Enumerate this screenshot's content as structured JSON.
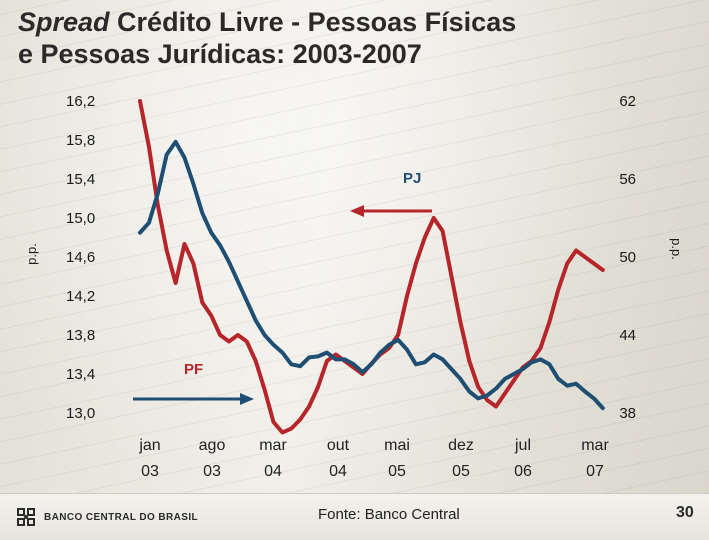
{
  "header": {
    "title_italic": "Spread",
    "title_rest": " Crédito Livre - Pessoas Físicas",
    "title_line2": "e Pessoas Jurídicas: 2003-2007"
  },
  "footer": {
    "logo_text": "BANCO CENTRAL DO BRASIL",
    "source": "Fonte: Banco Central",
    "page_number": "30"
  },
  "colors": {
    "pf": "#b5252a",
    "pj": "#1f4e73",
    "arrow_pf": "#1f4e73",
    "arrow_pj": "#b5252a"
  },
  "chart_data": {
    "type": "line",
    "left_axis": {
      "label": "p.p.",
      "ticks": [
        "16,2",
        "15,8",
        "15,4",
        "15,0",
        "14,6",
        "14,2",
        "13,8",
        "13,4",
        "13,0"
      ],
      "range": [
        13.0,
        16.2
      ]
    },
    "right_axis": {
      "label": "p.p.",
      "ticks": [
        "62",
        "56",
        "50",
        "44",
        "38"
      ],
      "range": [
        38,
        62
      ]
    },
    "x_labels": [
      {
        "line1": "jan",
        "line2": "03"
      },
      {
        "line1": "ago",
        "line2": "03"
      },
      {
        "line1": "mar",
        "line2": "04"
      },
      {
        "line1": "out",
        "line2": "04"
      },
      {
        "line1": "mai",
        "line2": "05"
      },
      {
        "line1": "dez",
        "line2": "05"
      },
      {
        "line1": "jul",
        "line2": "06"
      },
      {
        "line1": "mar",
        "line2": "07"
      }
    ],
    "annotations": {
      "pj_label": "PJ",
      "pf_label": "PF"
    },
    "series": [
      {
        "name": "PF",
        "axis": "right",
        "months": [
          0,
          1,
          2,
          3,
          4,
          5,
          6,
          7,
          8,
          9,
          10,
          11,
          12,
          13,
          14,
          15,
          16,
          17,
          18,
          19,
          20,
          21,
          22,
          23,
          24,
          25,
          26,
          27,
          28,
          29,
          30,
          31,
          32,
          33,
          34,
          35,
          36,
          37,
          38,
          39,
          40,
          41,
          42,
          43,
          44,
          45,
          46,
          47,
          48,
          49,
          50,
          51,
          52
        ],
        "values": [
          62.0,
          58.5,
          54.0,
          50.5,
          48.0,
          51.0,
          49.5,
          46.5,
          45.5,
          44.0,
          43.5,
          44.0,
          43.5,
          42.0,
          39.8,
          37.3,
          36.5,
          36.8,
          37.5,
          38.5,
          40.0,
          42.0,
          42.5,
          42.0,
          41.5,
          41.0,
          41.8,
          42.5,
          43.0,
          44.0,
          47.0,
          49.5,
          51.5,
          53.0,
          52.0,
          48.5,
          45.0,
          42.0,
          40.0,
          39.0,
          38.5,
          39.5,
          40.5,
          41.5,
          42.0,
          43.0,
          45.0,
          47.5,
          49.5,
          50.5,
          50.0,
          49.5,
          49.0
        ]
      },
      {
        "name": "PJ",
        "axis": "left",
        "months": [
          0,
          1,
          2,
          3,
          4,
          5,
          6,
          7,
          8,
          9,
          10,
          11,
          12,
          13,
          14,
          15,
          16,
          17,
          18,
          19,
          20,
          21,
          22,
          23,
          24,
          25,
          26,
          27,
          28,
          29,
          30,
          31,
          32,
          33,
          34,
          35,
          36,
          37,
          38,
          39,
          40,
          41,
          42,
          43,
          44,
          45,
          46,
          47,
          48,
          49,
          50,
          51,
          52
        ],
        "values": [
          14.85,
          14.95,
          15.25,
          15.65,
          15.78,
          15.62,
          15.35,
          15.05,
          14.85,
          14.72,
          14.55,
          14.35,
          14.15,
          13.95,
          13.8,
          13.7,
          13.62,
          13.5,
          13.48,
          13.57,
          13.58,
          13.62,
          13.55,
          13.55,
          13.5,
          13.42,
          13.5,
          13.62,
          13.7,
          13.75,
          13.65,
          13.5,
          13.52,
          13.6,
          13.55,
          13.45,
          13.35,
          13.22,
          13.15,
          13.18,
          13.25,
          13.35,
          13.4,
          13.45,
          13.52,
          13.55,
          13.5,
          13.35,
          13.28,
          13.3,
          13.22,
          13.15,
          13.05
        ]
      }
    ]
  }
}
